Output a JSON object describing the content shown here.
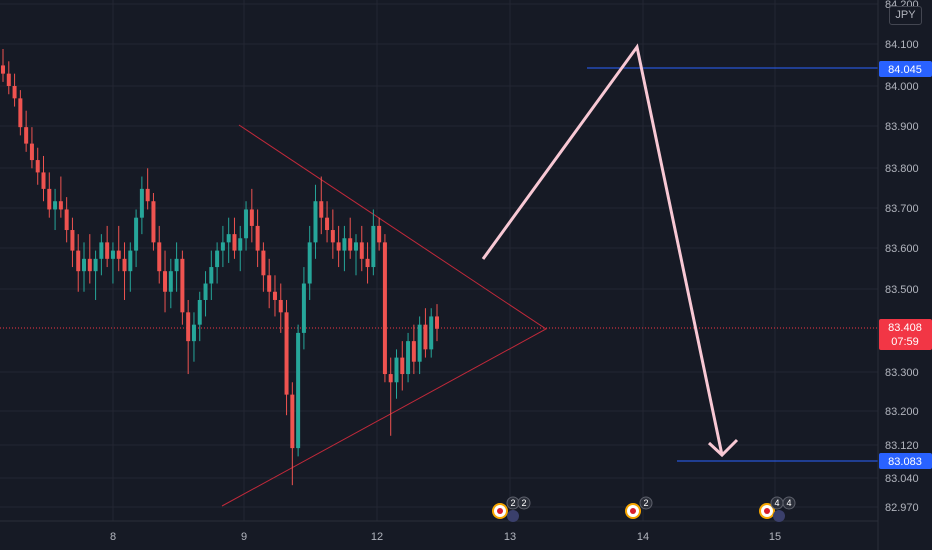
{
  "currency": "JPY",
  "price_axis": {
    "ticks": [
      "84.200",
      "84.100",
      "84.000",
      "83.900",
      "83.800",
      "83.700",
      "83.600",
      "83.500",
      "83.300",
      "83.200",
      "83.120",
      "83.040",
      "82.970"
    ]
  },
  "time_axis": {
    "ticks": [
      "8",
      "9",
      "12",
      "13",
      "14",
      "15"
    ]
  },
  "current_price": {
    "value": "83.408",
    "countdown": "07:59",
    "color": "#f23645"
  },
  "level_labels": [
    {
      "value": "84.045",
      "color": "#2962ff"
    },
    {
      "value": "83.083",
      "color": "#2962ff"
    }
  ],
  "events": [
    {
      "count_a": "2",
      "count_b": "2"
    },
    {
      "count_a": "2"
    },
    {
      "count_a": "4",
      "count_b": "4"
    }
  ],
  "chart_data": {
    "type": "candlestick",
    "symbol_currency": "JPY",
    "x_ticks": [
      "8",
      "9",
      "12",
      "13",
      "14",
      "15"
    ],
    "y_ticks": [
      84.2,
      84.1,
      84.0,
      83.9,
      83.8,
      83.7,
      83.6,
      83.5,
      83.3,
      83.2,
      83.12,
      83.04,
      82.97
    ],
    "ylim": [
      82.95,
      84.22
    ],
    "last_price": 83.408,
    "horizontal_levels": [
      84.045,
      83.083
    ],
    "candles_ohlc": [
      [
        84.05,
        84.09,
        84.01,
        84.03
      ],
      [
        84.03,
        84.06,
        83.98,
        84.0
      ],
      [
        84.0,
        84.03,
        83.95,
        83.97
      ],
      [
        83.97,
        83.99,
        83.88,
        83.9
      ],
      [
        83.9,
        83.94,
        83.84,
        83.86
      ],
      [
        83.86,
        83.9,
        83.8,
        83.82
      ],
      [
        83.82,
        83.85,
        83.76,
        83.79
      ],
      [
        83.79,
        83.83,
        83.72,
        83.75
      ],
      [
        83.75,
        83.79,
        83.68,
        83.7
      ],
      [
        83.7,
        83.75,
        83.65,
        83.72
      ],
      [
        83.72,
        83.78,
        83.68,
        83.7
      ],
      [
        83.7,
        83.73,
        83.62,
        83.65
      ],
      [
        83.65,
        83.68,
        83.56,
        83.6
      ],
      [
        83.6,
        83.64,
        83.5,
        83.55
      ],
      [
        83.55,
        83.62,
        83.5,
        83.58
      ],
      [
        83.58,
        83.64,
        83.52,
        83.55
      ],
      [
        83.55,
        83.6,
        83.48,
        83.58
      ],
      [
        83.58,
        83.64,
        83.54,
        83.62
      ],
      [
        83.62,
        83.66,
        83.56,
        83.58
      ],
      [
        83.58,
        83.62,
        83.52,
        83.6
      ],
      [
        83.6,
        83.66,
        83.55,
        83.58
      ],
      [
        83.58,
        83.62,
        83.48,
        83.55
      ],
      [
        83.55,
        83.62,
        83.5,
        83.6
      ],
      [
        83.6,
        83.7,
        83.56,
        83.68
      ],
      [
        83.68,
        83.78,
        83.64,
        83.75
      ],
      [
        83.75,
        83.8,
        83.7,
        83.72
      ],
      [
        83.72,
        83.74,
        83.6,
        83.62
      ],
      [
        83.62,
        83.66,
        83.52,
        83.55
      ],
      [
        83.55,
        83.6,
        83.45,
        83.5
      ],
      [
        83.5,
        83.58,
        83.46,
        83.55
      ],
      [
        83.55,
        83.62,
        83.5,
        83.58
      ],
      [
        83.58,
        83.6,
        83.42,
        83.45
      ],
      [
        83.45,
        83.48,
        83.3,
        83.38
      ],
      [
        83.38,
        83.45,
        83.33,
        83.42
      ],
      [
        83.42,
        83.5,
        83.38,
        83.48
      ],
      [
        83.48,
        83.55,
        83.44,
        83.52
      ],
      [
        83.52,
        83.6,
        83.48,
        83.56
      ],
      [
        83.56,
        83.62,
        83.52,
        83.6
      ],
      [
        83.6,
        83.66,
        83.56,
        83.62
      ],
      [
        83.62,
        83.68,
        83.57,
        83.64
      ],
      [
        83.64,
        83.68,
        83.58,
        83.6
      ],
      [
        83.6,
        83.66,
        83.55,
        83.63
      ],
      [
        83.63,
        83.72,
        83.6,
        83.7
      ],
      [
        83.7,
        83.75,
        83.62,
        83.66
      ],
      [
        83.66,
        83.7,
        83.56,
        83.6
      ],
      [
        83.6,
        83.62,
        83.5,
        83.54
      ],
      [
        83.54,
        83.58,
        83.46,
        83.5
      ],
      [
        83.5,
        83.54,
        83.44,
        83.48
      ],
      [
        83.48,
        83.52,
        83.4,
        83.45
      ],
      [
        83.45,
        83.48,
        83.2,
        83.25
      ],
      [
        83.25,
        83.28,
        83.03,
        83.12
      ],
      [
        83.12,
        83.42,
        83.1,
        83.4
      ],
      [
        83.4,
        83.56,
        83.36,
        83.52
      ],
      [
        83.52,
        83.66,
        83.48,
        83.62
      ],
      [
        83.62,
        83.76,
        83.58,
        83.72
      ],
      [
        83.72,
        83.78,
        83.64,
        83.68
      ],
      [
        83.68,
        83.72,
        83.62,
        83.65
      ],
      [
        83.65,
        83.7,
        83.58,
        83.62
      ],
      [
        83.62,
        83.66,
        83.56,
        83.6
      ],
      [
        83.6,
        83.66,
        83.55,
        83.63
      ],
      [
        83.63,
        83.68,
        83.58,
        83.6
      ],
      [
        83.6,
        83.64,
        83.54,
        83.62
      ],
      [
        83.62,
        83.66,
        83.55,
        83.58
      ],
      [
        83.58,
        83.62,
        83.52,
        83.56
      ],
      [
        83.56,
        83.7,
        83.54,
        83.66
      ],
      [
        83.66,
        83.68,
        83.6,
        83.62
      ],
      [
        83.62,
        83.64,
        83.28,
        83.3
      ],
      [
        83.3,
        83.34,
        83.15,
        83.28
      ],
      [
        83.28,
        83.36,
        83.24,
        83.34
      ],
      [
        83.34,
        83.38,
        83.26,
        83.3
      ],
      [
        83.3,
        83.4,
        83.28,
        83.38
      ],
      [
        83.38,
        83.42,
        83.3,
        83.33
      ],
      [
        83.33,
        83.44,
        83.3,
        83.42
      ],
      [
        83.42,
        83.46,
        83.34,
        83.36
      ],
      [
        83.36,
        83.46,
        83.34,
        83.44
      ],
      [
        83.44,
        83.47,
        83.38,
        83.41
      ]
    ],
    "drawings": [
      {
        "kind": "triangle",
        "color": "#f23645",
        "vertices_price": [
          83.905,
          83.412,
          82.975
        ]
      },
      {
        "kind": "projection-arrow",
        "color": "#f8c8d4",
        "path_price": [
          83.58,
          84.1,
          83.1
        ]
      }
    ]
  }
}
